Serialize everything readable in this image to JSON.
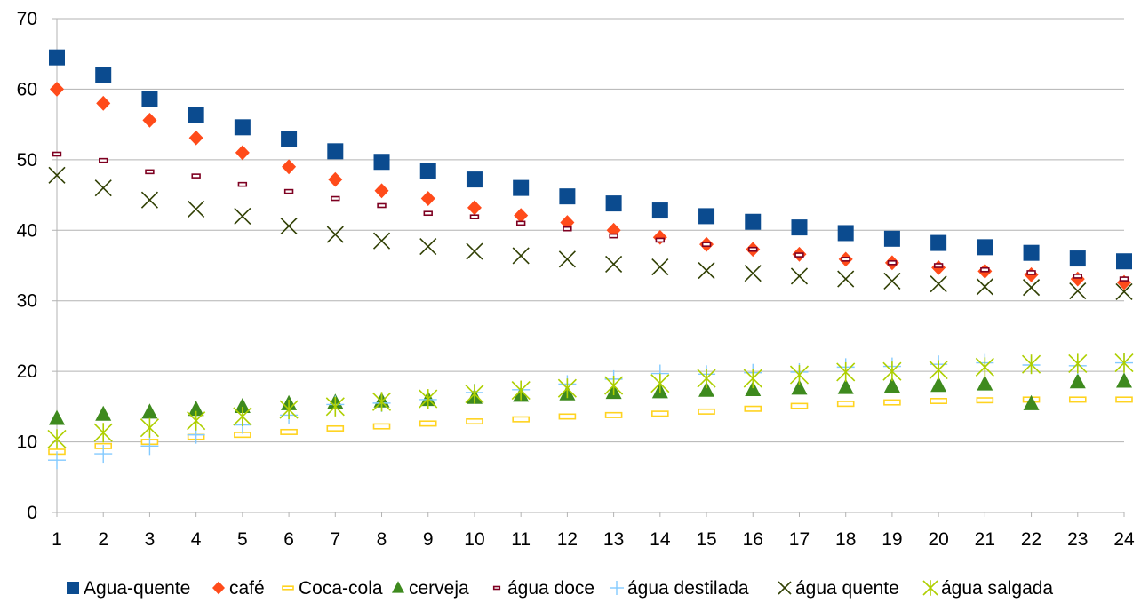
{
  "chart_data": {
    "type": "scatter",
    "title": "",
    "xlabel": "",
    "ylabel": "",
    "xlim": [
      1,
      24
    ],
    "ylim": [
      0,
      70
    ],
    "x_ticks": [
      "1",
      "2",
      "3",
      "4",
      "5",
      "6",
      "7",
      "8",
      "9",
      "10",
      "11",
      "12",
      "13",
      "14",
      "15",
      "16",
      "17",
      "18",
      "19",
      "20",
      "21",
      "22",
      "23",
      "24"
    ],
    "y_ticks": [
      "0",
      "10",
      "20",
      "30",
      "40",
      "50",
      "60",
      "70"
    ],
    "grid": "horizontal",
    "legend_position": "bottom",
    "x": [
      1,
      2,
      3,
      4,
      5,
      6,
      7,
      8,
      9,
      10,
      11,
      12,
      13,
      14,
      15,
      16,
      17,
      18,
      19,
      20,
      21,
      22,
      23,
      24
    ],
    "series": [
      {
        "name": "Agua-quente",
        "marker": "square",
        "color": "#0b4b8f",
        "values": [
          64.5,
          62,
          58.6,
          56.4,
          54.6,
          53,
          51.2,
          49.7,
          48.4,
          47.2,
          46,
          44.8,
          43.8,
          42.8,
          42,
          41.2,
          40.4,
          39.6,
          38.8,
          38.2,
          37.6,
          36.8,
          36,
          35.6
        ]
      },
      {
        "name": "café",
        "marker": "diamond",
        "color": "#ff4b1a",
        "values": [
          60,
          58,
          55.6,
          53.1,
          51,
          49,
          47.2,
          45.6,
          44.5,
          43.2,
          42.1,
          41.1,
          40,
          39,
          38,
          37.3,
          36.6,
          35.9,
          35.4,
          34.7,
          34.2,
          33.7,
          33.1,
          32.6
        ]
      },
      {
        "name": "Coca-cola",
        "marker": "dash",
        "color": "#ffd320",
        "values": [
          8.6,
          9.4,
          10,
          10.7,
          11,
          11.4,
          11.9,
          12.2,
          12.6,
          12.9,
          13.2,
          13.6,
          13.8,
          14,
          14.3,
          14.7,
          15.1,
          15.4,
          15.6,
          15.8,
          15.9,
          16,
          16,
          16
        ]
      },
      {
        "name": "cerveja",
        "marker": "triangle",
        "color": "#3e8a1e",
        "values": [
          13.3,
          13.9,
          14.2,
          14.6,
          15,
          15.4,
          15.6,
          15.8,
          16,
          16.3,
          16.6,
          16.8,
          17,
          17.1,
          17.3,
          17.4,
          17.6,
          17.7,
          17.9,
          18,
          18.2,
          15.4,
          18.5,
          18.6
        ]
      },
      {
        "name": "água doce",
        "marker": "small-rect",
        "color": "#7e0021",
        "values": [
          50.8,
          49.9,
          48.3,
          47.7,
          46.5,
          45.5,
          44.5,
          43.5,
          42.4,
          41.9,
          41,
          40.2,
          39.2,
          38.6,
          38,
          37.3,
          36.5,
          35.9,
          35.4,
          35,
          34.4,
          34,
          33.5,
          33.1
        ]
      },
      {
        "name": "água destilada",
        "marker": "plus",
        "color": "#83caff",
        "values": [
          7.4,
          8.3,
          9.4,
          11,
          12.4,
          13.8,
          15.3,
          15.5,
          16,
          17,
          17.4,
          18.2,
          18.9,
          19.7,
          19.6,
          19.8,
          19.9,
          20.6,
          20.7,
          21,
          21.2,
          20.9,
          20.8,
          21.2
        ]
      },
      {
        "name": "água quente",
        "marker": "x",
        "color": "#314004",
        "values": [
          47.8,
          46,
          44.3,
          43,
          42,
          40.6,
          39.4,
          38.5,
          37.7,
          37,
          36.4,
          35.9,
          35.2,
          34.8,
          34.3,
          33.9,
          33.5,
          33.1,
          32.8,
          32.4,
          32,
          31.9,
          31.4,
          31.3
        ]
      },
      {
        "name": "água salgada",
        "marker": "asterisk",
        "color": "#aecf00",
        "values": [
          10.4,
          11.3,
          12,
          13,
          13.6,
          14.6,
          15,
          15.7,
          16.1,
          16.8,
          17.3,
          17.6,
          18,
          18.3,
          19,
          19,
          19.5,
          19.9,
          20,
          20.2,
          20.6,
          21,
          21.1,
          21.2
        ]
      }
    ]
  }
}
